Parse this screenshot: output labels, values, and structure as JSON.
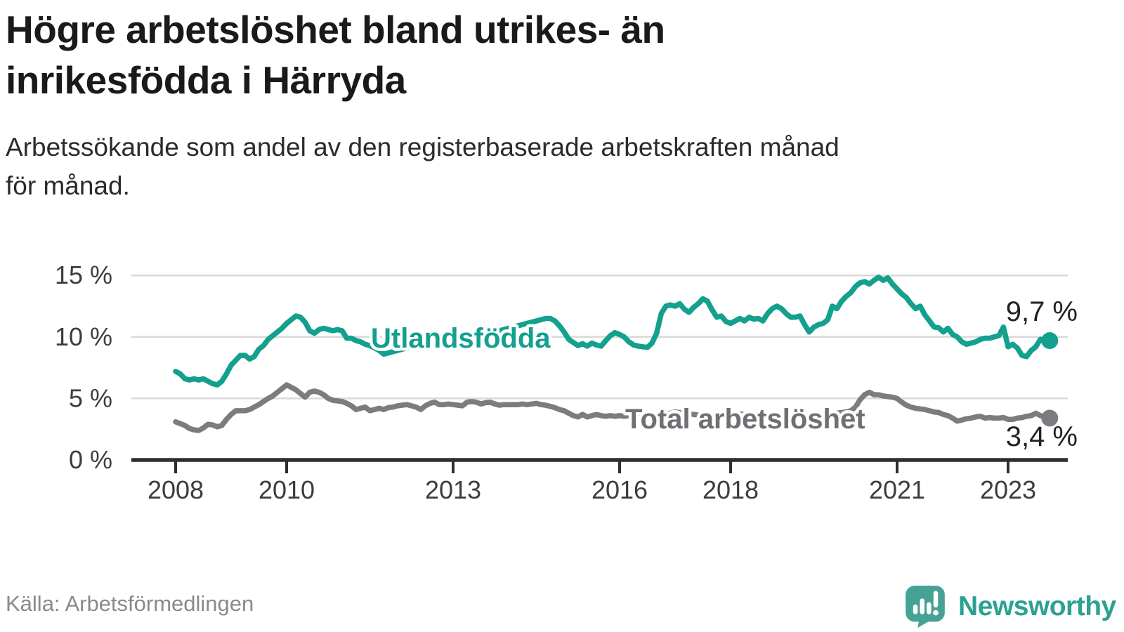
{
  "header": {
    "title_lines": [
      "Högre arbetslöshet bland utrikes- än",
      "inrikesfödda i Härryda"
    ],
    "subtitle_lines": [
      "Arbetssökande som andel av den registerbaserade arbetskraften månad",
      "för månad."
    ]
  },
  "footer": {
    "source": "Källa: Arbetsförmedlingen",
    "brand_name": "Newsworthy"
  },
  "colors": {
    "accent_teal": "#13a08e",
    "line_gray": "#7c7c80",
    "label_gray": "#6f6f74",
    "grid": "#d9d9d9",
    "axis": "#2f2f2f",
    "axis_text": "#3d3d3d",
    "value_text": "#222222",
    "source_text": "#8a8a8a",
    "brand_teal": "#2ca192",
    "brand_icon": "#47a296"
  },
  "chart_data": {
    "type": "line",
    "frequency": "monthly",
    "x_start": "2008-01",
    "x_end": "2023-10",
    "grid": "horizontal",
    "legend_position": "inline-labels",
    "ylim": [
      0,
      16
    ],
    "yticks": [
      {
        "value": 0,
        "label": "0 %"
      },
      {
        "value": 5,
        "label": "5 %"
      },
      {
        "value": 10,
        "label": "10 %"
      },
      {
        "value": 15,
        "label": "15 %"
      }
    ],
    "xticks": [
      {
        "year": 2008,
        "label": "2008"
      },
      {
        "year": 2010,
        "label": "2010"
      },
      {
        "year": 2013,
        "label": "2013"
      },
      {
        "year": 2016,
        "label": "2016"
      },
      {
        "year": 2018,
        "label": "2018"
      },
      {
        "year": 2021,
        "label": "2021"
      },
      {
        "year": 2023,
        "label": "2023"
      }
    ],
    "series": [
      {
        "name": "utlandsfodda",
        "label": "Utlandsfödda",
        "color": "#13a08e",
        "label_color": "#13a08e",
        "end_value": 9.7,
        "end_label": "9,7 %",
        "values": [
          7.2,
          7.0,
          6.6,
          6.5,
          6.6,
          6.5,
          6.6,
          6.4,
          6.2,
          6.1,
          6.4,
          7.0,
          7.7,
          8.1,
          8.5,
          8.5,
          8.2,
          8.4,
          9.0,
          9.3,
          9.8,
          10.1,
          10.4,
          10.7,
          11.1,
          11.4,
          11.7,
          11.6,
          11.2,
          10.5,
          10.3,
          10.6,
          10.7,
          10.6,
          10.5,
          10.6,
          10.5,
          9.9,
          9.9,
          9.7,
          9.6,
          9.4,
          9.3,
          9.1,
          8.9,
          8.6,
          8.7,
          8.8,
          8.9,
          9.0,
          9.1,
          9.2,
          9.2,
          9.3,
          9.4,
          9.5,
          9.5,
          9.6,
          9.7,
          9.8,
          9.9,
          10.0,
          10.1,
          10.1,
          10.2,
          10.2,
          10.3,
          10.3,
          10.4,
          10.4,
          10.5,
          10.6,
          10.7,
          10.8,
          10.9,
          11.0,
          11.1,
          11.2,
          11.3,
          11.4,
          11.5,
          11.5,
          11.3,
          10.9,
          10.4,
          9.8,
          9.55,
          9.3,
          9.45,
          9.25,
          9.5,
          9.35,
          9.25,
          9.7,
          10.1,
          10.35,
          10.2,
          10.0,
          9.6,
          9.35,
          9.25,
          9.2,
          9.15,
          9.5,
          10.3,
          11.9,
          12.5,
          12.6,
          12.5,
          12.7,
          12.25,
          12.0,
          12.4,
          12.7,
          13.1,
          12.9,
          12.2,
          11.6,
          11.7,
          11.25,
          11.1,
          11.3,
          11.5,
          11.3,
          11.6,
          11.45,
          11.5,
          11.3,
          11.9,
          12.3,
          12.5,
          12.3,
          11.9,
          11.6,
          11.6,
          11.7,
          11.0,
          10.4,
          10.8,
          11.0,
          11.1,
          11.4,
          12.5,
          12.3,
          12.9,
          13.3,
          13.6,
          14.1,
          14.4,
          14.5,
          14.3,
          14.6,
          14.85,
          14.6,
          14.8,
          14.3,
          13.9,
          13.5,
          13.2,
          12.7,
          12.3,
          12.5,
          11.8,
          11.3,
          10.8,
          10.75,
          10.4,
          10.7,
          10.2,
          10.0,
          9.6,
          9.4,
          9.5,
          9.6,
          9.8,
          9.9,
          9.9,
          10.0,
          10.1,
          10.8,
          9.2,
          9.4,
          9.1,
          8.5,
          8.4,
          8.9,
          9.2,
          9.8,
          9.6,
          9.7
        ]
      },
      {
        "name": "total-arbetsloshet",
        "label": "Total arbetslöshet",
        "color": "#7c7c80",
        "label_color": "#6f6f74",
        "end_value": 3.4,
        "end_label": "3,4 %",
        "values": [
          3.1,
          2.95,
          2.8,
          2.55,
          2.45,
          2.4,
          2.6,
          2.9,
          2.85,
          2.7,
          2.8,
          3.3,
          3.7,
          4.0,
          4.0,
          4.0,
          4.1,
          4.3,
          4.5,
          4.75,
          5.0,
          5.2,
          5.5,
          5.8,
          6.1,
          5.9,
          5.7,
          5.4,
          5.1,
          5.5,
          5.6,
          5.5,
          5.3,
          5.0,
          4.85,
          4.8,
          4.75,
          4.6,
          4.4,
          4.1,
          4.2,
          4.3,
          4.0,
          4.1,
          4.2,
          4.1,
          4.25,
          4.3,
          4.4,
          4.45,
          4.5,
          4.4,
          4.3,
          4.1,
          4.4,
          4.6,
          4.7,
          4.5,
          4.5,
          4.55,
          4.5,
          4.45,
          4.4,
          4.7,
          4.75,
          4.7,
          4.55,
          4.65,
          4.7,
          4.55,
          4.45,
          4.5,
          4.5,
          4.5,
          4.5,
          4.55,
          4.5,
          4.55,
          4.6,
          4.5,
          4.45,
          4.35,
          4.25,
          4.1,
          4.0,
          3.8,
          3.6,
          3.5,
          3.7,
          3.5,
          3.6,
          3.7,
          3.6,
          3.55,
          3.6,
          3.55,
          3.6,
          3.55,
          3.6,
          3.65,
          3.6,
          3.55,
          3.5,
          3.55,
          3.6,
          3.7,
          3.75,
          3.8,
          3.9,
          3.85,
          3.8,
          3.75,
          3.7,
          3.65,
          3.6,
          3.55,
          3.6,
          3.65,
          3.7,
          3.75,
          3.8,
          3.8,
          3.75,
          3.7,
          3.65,
          3.6,
          3.55,
          3.5,
          3.55,
          3.6,
          3.65,
          3.7,
          3.75,
          3.7,
          3.65,
          3.6,
          3.55,
          3.5,
          3.55,
          3.6,
          3.65,
          3.7,
          3.75,
          3.8,
          3.85,
          3.9,
          4.0,
          4.3,
          4.9,
          5.3,
          5.5,
          5.3,
          5.3,
          5.2,
          5.15,
          5.1,
          5.0,
          4.7,
          4.45,
          4.3,
          4.2,
          4.15,
          4.1,
          4.0,
          3.9,
          3.85,
          3.7,
          3.6,
          3.4,
          3.15,
          3.25,
          3.35,
          3.4,
          3.5,
          3.55,
          3.4,
          3.45,
          3.4,
          3.4,
          3.45,
          3.3,
          3.3,
          3.4,
          3.45,
          3.55,
          3.6,
          3.8,
          3.6,
          3.5,
          3.4
        ]
      }
    ]
  }
}
